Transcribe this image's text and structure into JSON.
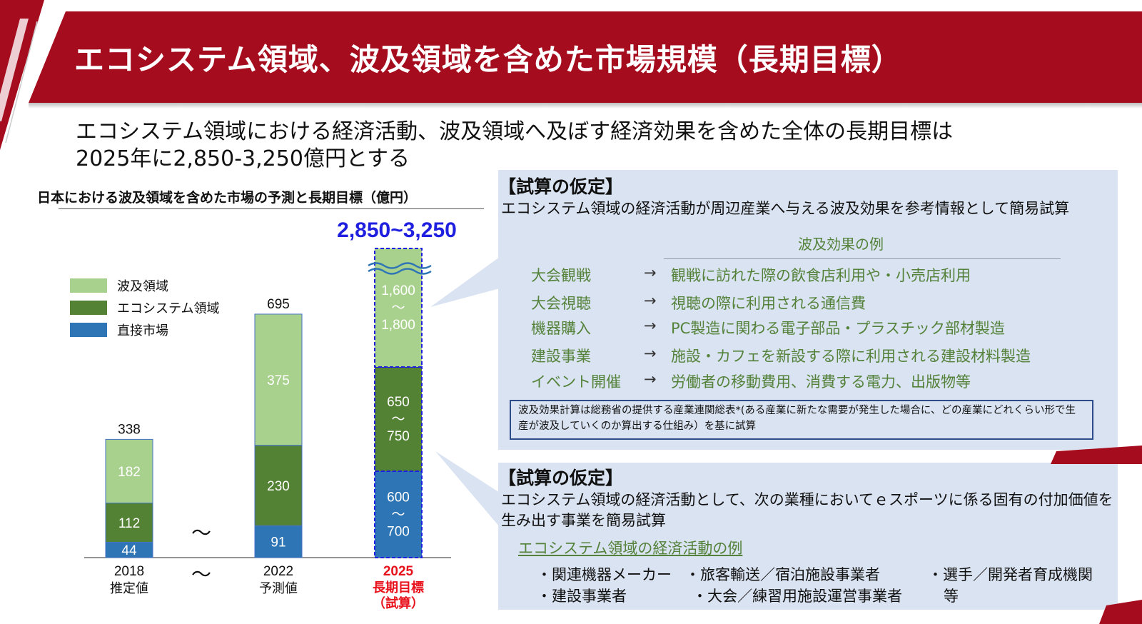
{
  "header": {
    "title": "エコシステム領域、波及領域を含めた市場規模（長期目標）",
    "accent_color": "#a50c1e"
  },
  "lead": {
    "line1": "エコシステム領域における経済活動、波及領域へ及ぼす経済効果を含めた全体の長期目標は",
    "line2": "2025年に2,850-3,250億円とする"
  },
  "chart_data": {
    "type": "bar",
    "stacked": true,
    "title": "日本における波及領域を含めた市場の予測と長期目標（億円）",
    "categories": [
      {
        "year": "2018",
        "label": "推定値"
      },
      {
        "year": "2022",
        "label": "予測値"
      },
      {
        "year": "2025",
        "label": "長期目標",
        "label2": "（試算）"
      }
    ],
    "series": [
      {
        "name": "直接市場",
        "color": "#2e75b6",
        "values": [
          44,
          91,
          [
            600,
            700
          ]
        ],
        "labels": [
          "44",
          "91",
          "600～700"
        ]
      },
      {
        "name": "エコシステム領域",
        "color": "#548235",
        "values": [
          112,
          230,
          [
            650,
            750
          ]
        ],
        "labels": [
          "112",
          "230",
          "650～750"
        ]
      },
      {
        "name": "波及領域",
        "color": "#a9d18e",
        "values": [
          182,
          375,
          [
            1600,
            1800
          ]
        ],
        "labels": [
          "182",
          "375",
          "1,600～1,800"
        ]
      }
    ],
    "totals": [
      "338",
      "695",
      "2,850~3,250"
    ],
    "legend": [
      "波及領域",
      "エコシステム領域",
      "直接市場"
    ],
    "legend_position": "left",
    "axis_break_symbol": "～",
    "target_color": "#e8121c",
    "target_total_color": "#1f1fe0",
    "grid": false
  },
  "assumption_top": {
    "heading": "【試算の仮定】",
    "text": "エコシステム領域の経済活動が周辺産業へ与える波及効果を参考情報として簡易試算",
    "examples_title": "波及効果の例",
    "arrow": "→",
    "examples": [
      {
        "category": "大会観戦",
        "desc": "観戦に訪れた際の飲食店利用や・小売店利用"
      },
      {
        "category": "大会視聴",
        "desc": "視聴の際に利用される通信費"
      },
      {
        "category": "機器購入",
        "desc": "PC製造に関わる電子部品・プラスチック部材製造"
      },
      {
        "category": "建設事業",
        "desc": "施設・カフェを新設する際に利用される建設材料製造"
      },
      {
        "category": "イベント開催",
        "desc": "労働者の移動費用、消費する電力、出版物等"
      }
    ],
    "note": "波及効果計算は総務省の提供する産業連関総表*(ある産業に新たな需要が発生した場合に、どの産業にどれくらい形で生産が波及していくのか算出する仕組み）を基に試算"
  },
  "assumption_bottom": {
    "heading": "【試算の仮定】",
    "text": "エコシステム領域の経済活動として、次の業種においてｅスポーツに係る固有の付加価値を生み出す事業を簡易試算",
    "subheading": "エコシステム領域の経済活動の例",
    "items": [
      "・関連機器メーカー",
      "・旅客輸送／宿泊施設事業者",
      "・選手／開発者育成機関",
      "・建設事業者",
      "・大会／練習用施設運営事業者",
      "等"
    ]
  }
}
